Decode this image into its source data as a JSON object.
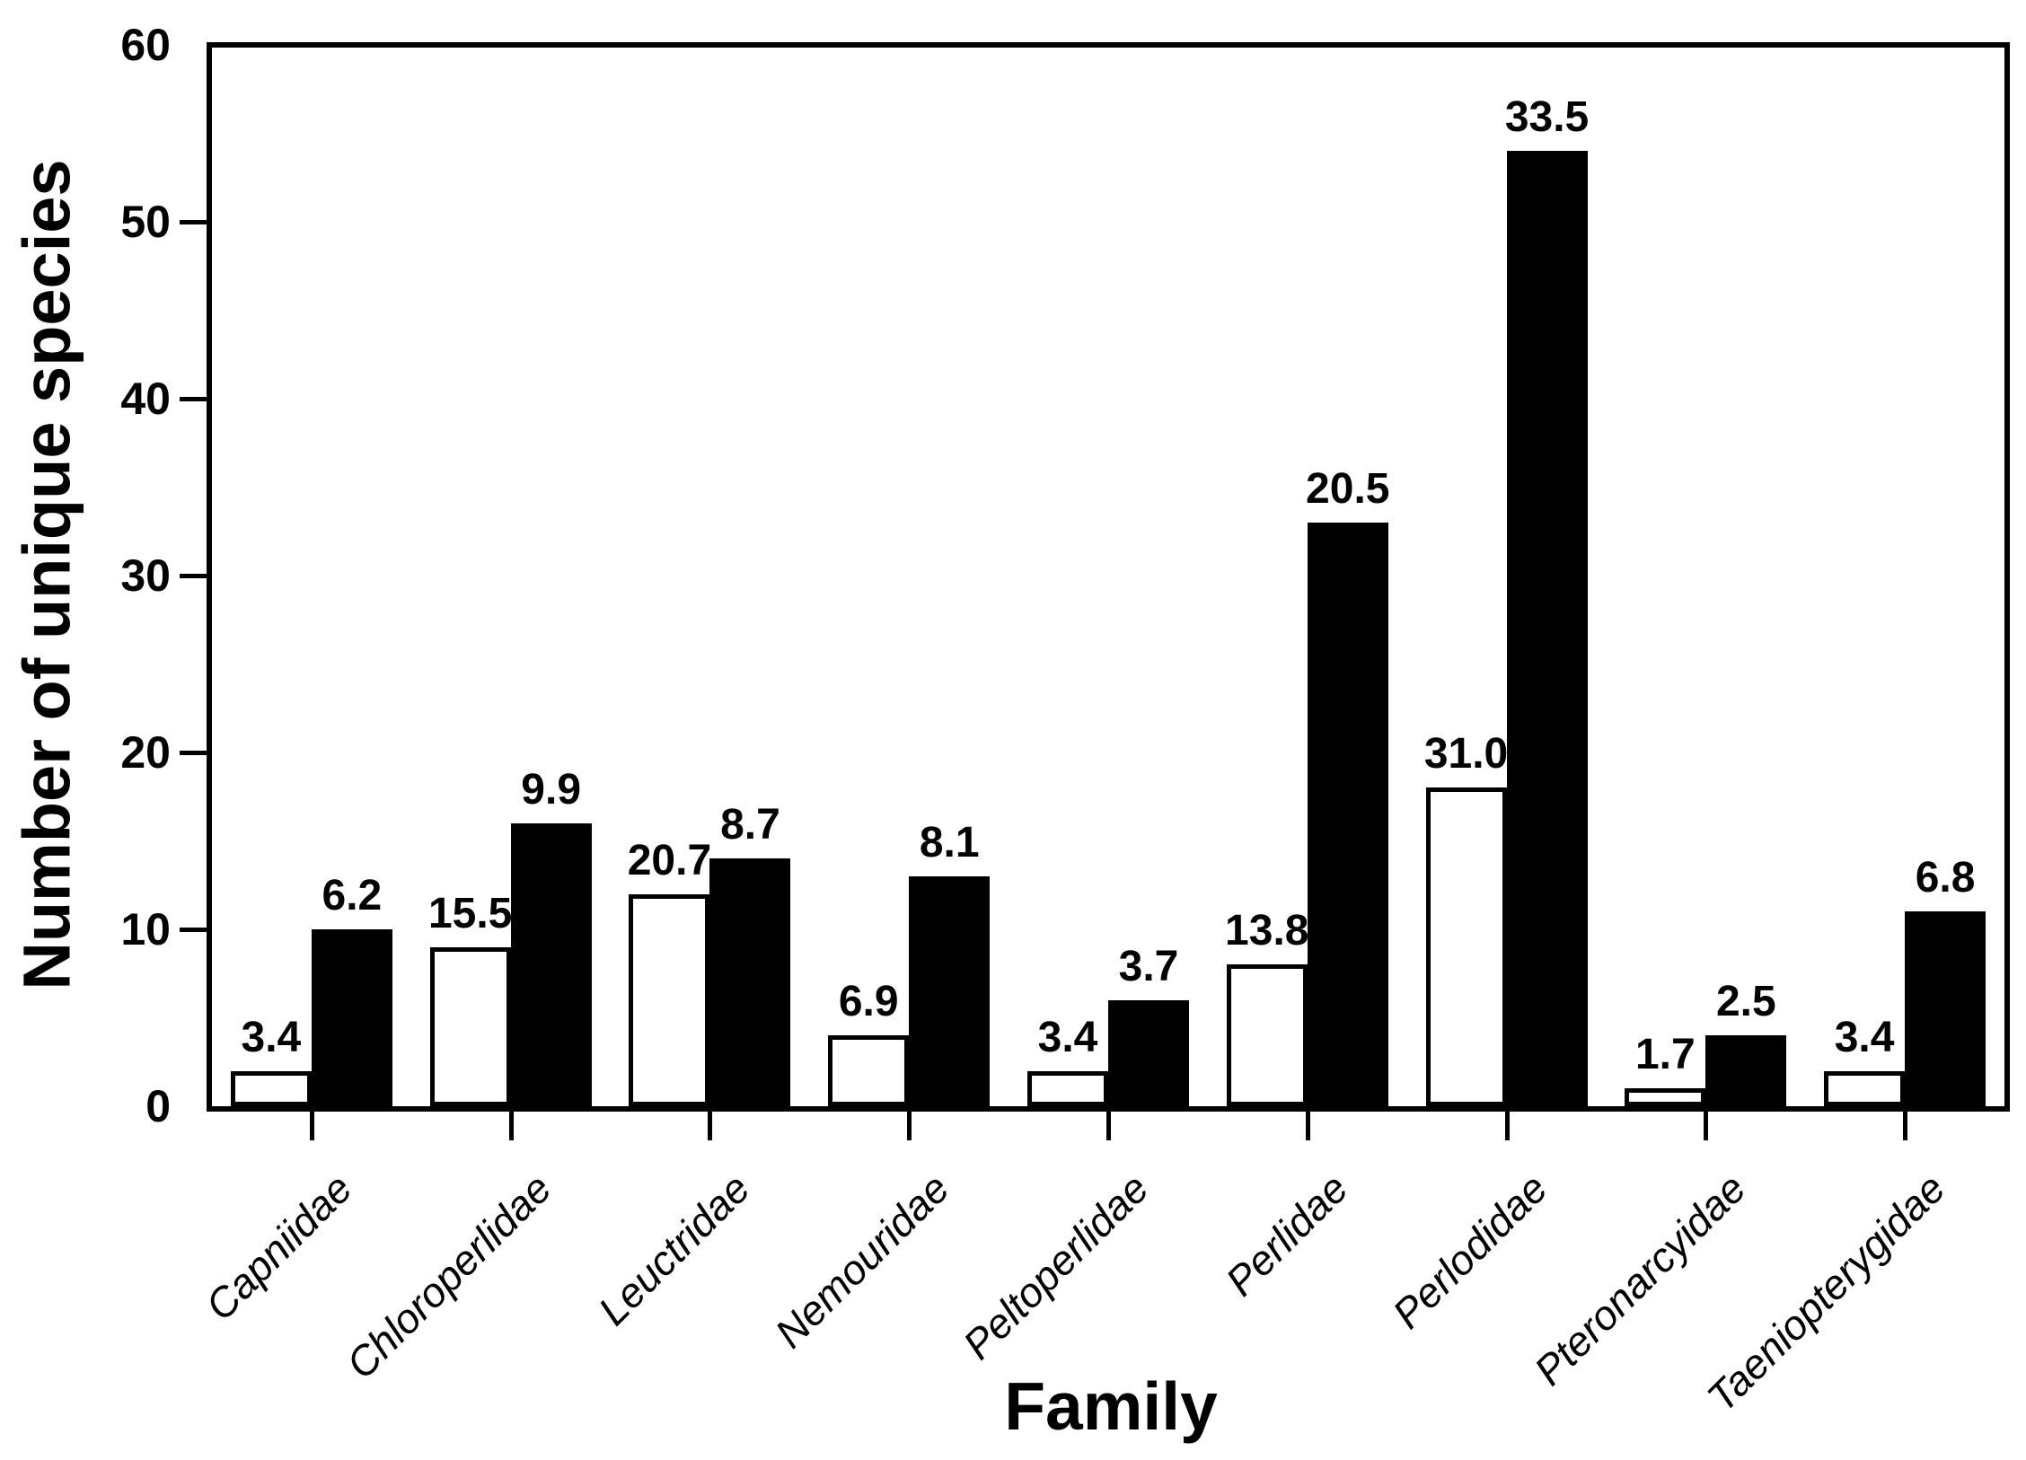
{
  "chart_data": {
    "type": "bar",
    "title": "",
    "xlabel": "Family",
    "ylabel": "Number of unique species",
    "ylim": [
      0,
      60
    ],
    "yticks": [
      0,
      10,
      20,
      30,
      40,
      50,
      60
    ],
    "grid": false,
    "legend_position": "none",
    "categories": [
      "Capniidae",
      "Chloroperlidae",
      "Leuctridae",
      "Nemouridae",
      "Peltoperlidae",
      "Perlidae",
      "Perlodidae",
      "Pteronarcyidae",
      "Taeniopterygidae"
    ],
    "series": [
      {
        "name": "open-bars",
        "fill": "#ffffff",
        "outline": "#000000",
        "values": [
          2,
          9,
          12,
          4,
          2,
          8,
          18,
          1,
          2
        ],
        "bar_labels": [
          "3.4",
          "15.5",
          "20.7",
          "6.9",
          "3.4",
          "13.8",
          "31.0",
          "1.7",
          "3.4"
        ]
      },
      {
        "name": "filled-bars",
        "fill": "#000000",
        "outline": "#000000",
        "values": [
          10,
          16,
          14,
          13,
          6,
          33,
          54,
          4,
          11
        ],
        "bar_labels": [
          "6.2",
          "9.9",
          "8.7",
          "8.1",
          "3.7",
          "20.5",
          "33.5",
          "2.5",
          "6.8"
        ]
      }
    ],
    "colors": {
      "foreground": "#000000",
      "background": "#ffffff"
    }
  }
}
